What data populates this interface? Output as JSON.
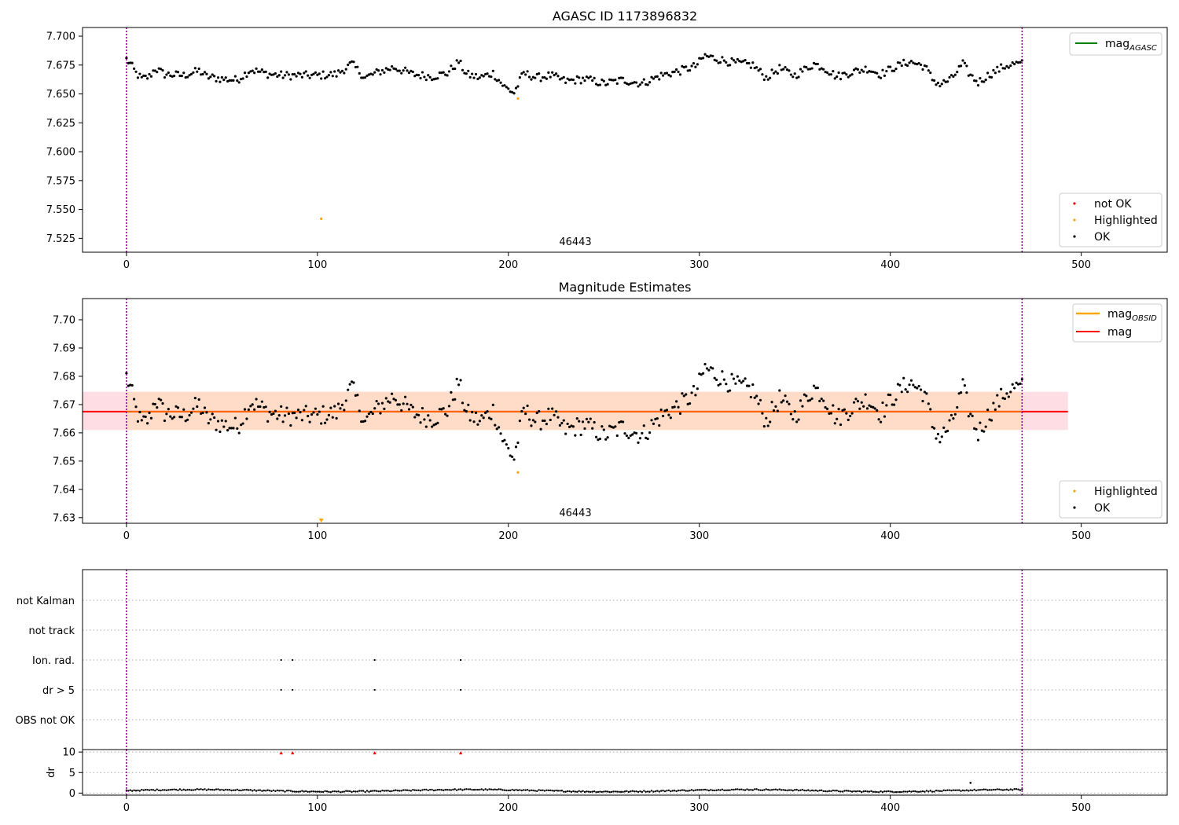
{
  "chart_data": [
    {
      "type": "scatter",
      "title": "AGASC ID 1173896832",
      "xlim": [
        -23,
        545
      ],
      "ylim": [
        7.513,
        7.7075
      ],
      "xticks": [
        0,
        100,
        200,
        300,
        400,
        500
      ],
      "yticks": [
        7.525,
        7.55,
        7.575,
        7.6,
        7.625,
        7.65,
        7.675,
        7.7
      ],
      "ytick_labels": [
        "7.525",
        "7.550",
        "7.575",
        "7.600",
        "7.625",
        "7.650",
        "7.675",
        "7.700"
      ],
      "obs_boundaries": [
        0,
        469
      ],
      "obsid_label": "46443",
      "legend_top": {
        "placement": "top-right",
        "entries": [
          {
            "label_main": "mag",
            "label_sub": "AGASC",
            "color": "#008000"
          }
        ]
      },
      "legend_bottom": {
        "placement": "bottom-right",
        "entries": [
          {
            "label": "not OK",
            "color": "#ff0000"
          },
          {
            "label": "Highlighted",
            "color": "#ffa500"
          },
          {
            "label": "OK",
            "color": "#000000"
          }
        ]
      },
      "highlighted": [
        [
          102,
          7.542
        ],
        [
          205,
          7.646
        ]
      ],
      "ok_series": {
        "n": 470,
        "x_range": [
          0,
          469
        ],
        "anchors": [
          [
            0,
            7.68
          ],
          [
            2,
            7.676
          ],
          [
            5,
            7.668
          ],
          [
            8,
            7.663
          ],
          [
            12,
            7.665
          ],
          [
            15,
            7.672
          ],
          [
            20,
            7.667
          ],
          [
            30,
            7.666
          ],
          [
            38,
            7.67
          ],
          [
            42,
            7.665
          ],
          [
            50,
            7.663
          ],
          [
            58,
            7.662
          ],
          [
            65,
            7.671
          ],
          [
            75,
            7.667
          ],
          [
            82,
            7.666
          ],
          [
            90,
            7.666
          ],
          [
            100,
            7.666
          ],
          [
            110,
            7.667
          ],
          [
            118,
            7.676
          ],
          [
            125,
            7.664
          ],
          [
            132,
            7.669
          ],
          [
            140,
            7.673
          ],
          [
            150,
            7.667
          ],
          [
            160,
            7.665
          ],
          [
            168,
            7.668
          ],
          [
            174,
            7.678
          ],
          [
            178,
            7.667
          ],
          [
            185,
            7.664
          ],
          [
            192,
            7.668
          ],
          [
            198,
            7.656
          ],
          [
            203,
            7.651
          ],
          [
            208,
            7.668
          ],
          [
            215,
            7.664
          ],
          [
            222,
            7.666
          ],
          [
            230,
            7.661
          ],
          [
            240,
            7.663
          ],
          [
            250,
            7.659
          ],
          [
            260,
            7.662
          ],
          [
            270,
            7.659
          ],
          [
            280,
            7.666
          ],
          [
            290,
            7.67
          ],
          [
            298,
            7.674
          ],
          [
            303,
            7.683
          ],
          [
            310,
            7.68
          ],
          [
            318,
            7.677
          ],
          [
            328,
            7.675
          ],
          [
            335,
            7.664
          ],
          [
            342,
            7.672
          ],
          [
            350,
            7.666
          ],
          [
            360,
            7.676
          ],
          [
            365,
            7.673
          ],
          [
            372,
            7.665
          ],
          [
            380,
            7.669
          ],
          [
            388,
            7.672
          ],
          [
            395,
            7.667
          ],
          [
            402,
            7.673
          ],
          [
            410,
            7.678
          ],
          [
            418,
            7.674
          ],
          [
            422,
            7.663
          ],
          [
            426,
            7.658
          ],
          [
            432,
            7.663
          ],
          [
            438,
            7.676
          ],
          [
            442,
            7.666
          ],
          [
            446,
            7.66
          ],
          [
            452,
            7.667
          ],
          [
            460,
            7.674
          ],
          [
            465,
            7.676
          ],
          [
            469,
            7.676
          ]
        ],
        "noise": 0.0035
      }
    },
    {
      "type": "scatter",
      "title": "Magnitude Estimates",
      "xlim": [
        -23,
        545
      ],
      "ylim": [
        7.628,
        7.7075
      ],
      "xticks": [
        0,
        100,
        200,
        300,
        400,
        500
      ],
      "yticks": [
        7.63,
        7.64,
        7.65,
        7.66,
        7.67,
        7.68,
        7.69,
        7.7
      ],
      "ytick_labels": [
        "7.63",
        "7.64",
        "7.65",
        "7.66",
        "7.67",
        "7.68",
        "7.69",
        "7.70"
      ],
      "obs_boundaries": [
        0,
        469
      ],
      "obsid_label": "46443",
      "mag": 7.6675,
      "mag_band": [
        7.661,
        7.6745
      ],
      "band_x_end": 493,
      "legend_top": {
        "placement": "top-right",
        "entries": [
          {
            "label_main": "mag",
            "label_sub": "OBSID",
            "color": "#ffa500"
          },
          {
            "label_main": "mag",
            "label_sub": "",
            "color": "#ff0000"
          }
        ]
      },
      "legend_bottom": {
        "placement": "bottom-right",
        "entries": [
          {
            "label": "Highlighted",
            "color": "#ffa500"
          },
          {
            "label": "OK",
            "color": "#000000"
          }
        ]
      },
      "highlighted": [
        [
          205,
          7.646
        ]
      ],
      "offscale_markers": [
        102
      ]
    },
    {
      "type": "scatter",
      "title": "",
      "categories": [
        "not Kalman",
        "not track",
        "Ion. rad.",
        "dr > 5",
        "OBS not OK"
      ],
      "flag_points": {
        "Ion. rad.": [
          81,
          87,
          130,
          175
        ],
        "dr > 5": [
          81,
          87,
          130,
          175
        ]
      },
      "obs_boundaries": [
        0,
        469
      ]
    },
    {
      "type": "scatter",
      "title": "",
      "ylabel": "dr",
      "xlim": [
        -23,
        545
      ],
      "ylim": [
        -0.5,
        10.6
      ],
      "xticks": [
        0,
        100,
        200,
        300,
        400,
        500
      ],
      "yticks": [
        0,
        5,
        10
      ],
      "capped_points": [
        [
          81,
          9.8
        ],
        [
          87,
          9.8
        ],
        [
          130,
          9.8
        ],
        [
          175,
          9.8
        ]
      ],
      "outlier": [
        [
          442,
          2.5
        ]
      ],
      "base_range": [
        0.2,
        1.2
      ],
      "obs_boundaries": [
        0,
        469
      ]
    }
  ]
}
